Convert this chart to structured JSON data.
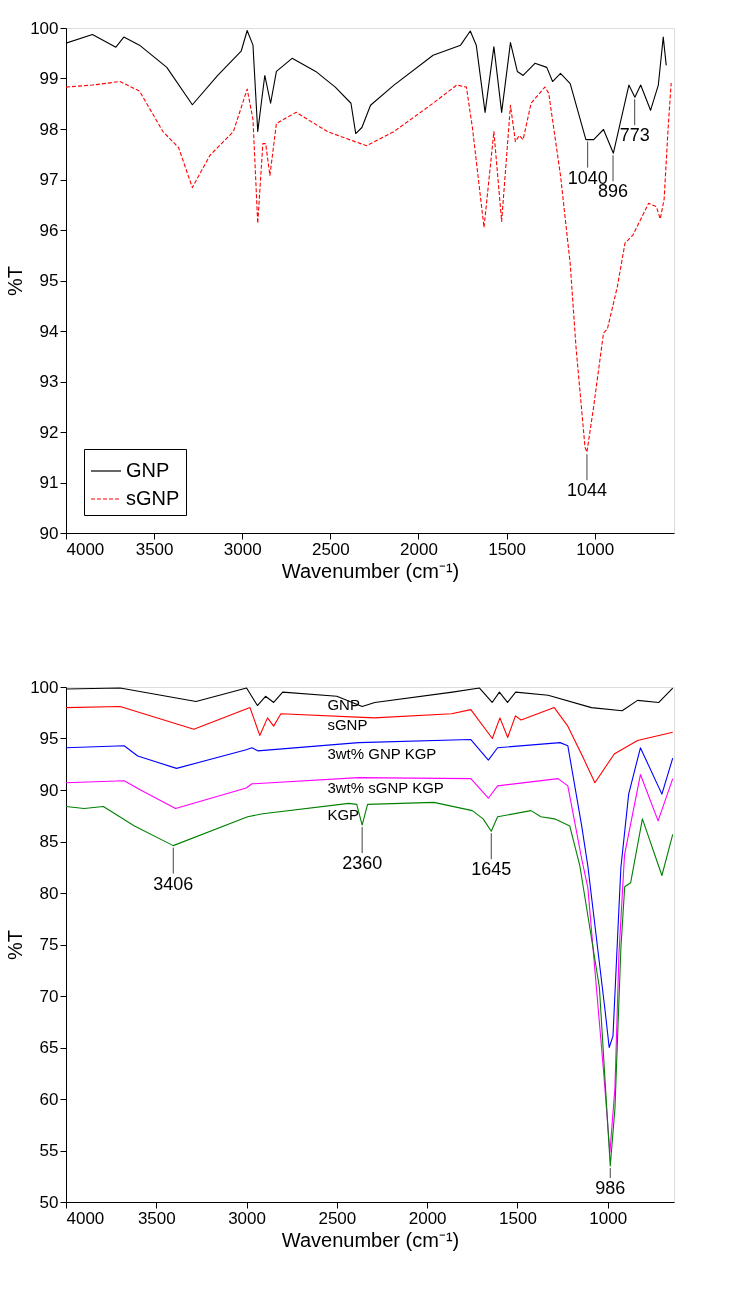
{
  "chart_data": [
    {
      "type": "line",
      "xlabel": "Wavenumber (cm⁻¹)",
      "ylabel": "%T",
      "xlim": [
        4000,
        550
      ],
      "xticks": [
        4000,
        3500,
        3000,
        2500,
        2000,
        1500,
        1000
      ],
      "ylim": [
        90,
        100
      ],
      "yticks": [
        90,
        91,
        92,
        93,
        94,
        95,
        96,
        97,
        98,
        99,
        100
      ],
      "legend": "bottom left",
      "grid": false,
      "series": [
        {
          "name": "GNP",
          "color": "#000000",
          "line_style": "solid",
          "x": [
            4000,
            3850,
            3717,
            3672,
            3583,
            3428,
            3283,
            3139,
            3006,
            2972,
            2939,
            2912,
            2872,
            2839,
            2806,
            2717,
            2583,
            2472,
            2383,
            2356,
            2321,
            2272,
            2139,
            1917,
            1761,
            1706,
            1672,
            1622,
            1572,
            1528,
            1478,
            1439,
            1406,
            1339,
            1272,
            1239,
            1194,
            1139,
            1050,
            1006,
            950,
            894,
            806,
            772,
            739,
            683,
            639,
            611,
            594
          ],
          "values": [
            99.7,
            99.87,
            99.62,
            99.82,
            99.66,
            99.22,
            98.48,
            99.06,
            99.54,
            99.95,
            99.66,
            97.95,
            99.06,
            98.51,
            99.14,
            99.4,
            99.14,
            98.83,
            98.51,
            97.91,
            98.03,
            98.47,
            98.87,
            99.46,
            99.66,
            99.94,
            99.66,
            98.33,
            99.63,
            98.33,
            99.71,
            99.14,
            99.06,
            99.3,
            99.22,
            98.94,
            99.1,
            98.9,
            97.79,
            97.79,
            97.99,
            97.52,
            98.87,
            98.63,
            98.87,
            98.37,
            98.87,
            99.82,
            99.26
          ]
        },
        {
          "name": "sGNP",
          "color": "#ff0000",
          "line_style": "dashed",
          "x": [
            4000,
            3850,
            3694,
            3583,
            3450,
            3361,
            3283,
            3183,
            3050,
            2972,
            2939,
            2912,
            2883,
            2867,
            2843,
            2806,
            2694,
            2517,
            2361,
            2294,
            2139,
            1917,
            1783,
            1728,
            1694,
            1628,
            1572,
            1528,
            1478,
            1450,
            1428,
            1406,
            1361,
            1283,
            1261,
            1194,
            1139,
            1106,
            1055,
            1044,
            1006,
            950,
            928,
            872,
            828,
            783,
            694,
            650,
            628,
            606,
            583,
            566
          ],
          "values": [
            98.83,
            98.87,
            98.94,
            98.75,
            97.95,
            97.63,
            96.84,
            97.48,
            97.95,
            98.79,
            98.19,
            96.13,
            97.71,
            97.71,
            97.08,
            98.11,
            98.33,
            97.95,
            97.75,
            97.67,
            97.95,
            98.51,
            98.87,
            98.83,
            98.03,
            96.05,
            97.95,
            96.17,
            98.47,
            97.75,
            97.87,
            97.79,
            98.51,
            98.83,
            98.71,
            97.08,
            95.33,
            93.68,
            91.7,
            91.6,
            92.5,
            93.96,
            94.04,
            94.87,
            95.74,
            95.9,
            96.53,
            96.46,
            96.22,
            96.61,
            98.04,
            98.91
          ]
        }
      ],
      "annotations": [
        {
          "text": "1040",
          "x": 1040,
          "y": 97.79
        },
        {
          "text": "896",
          "x": 896,
          "y": 97.52
        },
        {
          "text": "773",
          "x": 773,
          "y": 98.63
        },
        {
          "text": "1044",
          "x": 1044,
          "y": 91.6
        }
      ]
    },
    {
      "type": "line",
      "xlabel": "Wavenumber (cm⁻¹)",
      "ylabel": "%T",
      "xlim": [
        4000,
        633
      ],
      "xticks": [
        4000,
        3500,
        3000,
        2500,
        2000,
        1500,
        1000
      ],
      "ylim": [
        50,
        100
      ],
      "yticks": [
        50,
        55,
        60,
        65,
        70,
        75,
        80,
        85,
        90,
        95,
        100
      ],
      "legend": false,
      "grid": false,
      "series": [
        {
          "name": "GNP",
          "color": "#000000",
          "line_style": "solid",
          "x": [
            4000,
            3700,
            3280,
            3000,
            2940,
            2895,
            2850,
            2800,
            2500,
            2360,
            2290,
            1860,
            1710,
            1640,
            1600,
            1555,
            1510,
            1330,
            1090,
            920,
            835,
            717,
            640
          ],
          "values": [
            99.8,
            99.9,
            98.6,
            99.9,
            98.2,
            99.1,
            98.5,
            99.5,
            99.1,
            98.1,
            98.5,
            99.5,
            99.9,
            98.5,
            99.5,
            98.5,
            99.5,
            99.2,
            98.0,
            97.7,
            98.7,
            98.5,
            99.9
          ]
        },
        {
          "name": "sGNP",
          "color": "#ff0000",
          "line_style": "solid",
          "x": [
            4000,
            3700,
            3292,
            2981,
            2927,
            2884,
            2850,
            2810,
            2294,
            1865,
            1758,
            1639,
            1597,
            1554,
            1511,
            1480,
            1296,
            1221,
            1135,
            1071,
            964,
            835,
            640
          ],
          "values": [
            98.0,
            98.1,
            95.9,
            98.0,
            95.3,
            97.0,
            96.2,
            97.4,
            97.0,
            97.4,
            97.8,
            95.0,
            97.0,
            95.1,
            97.2,
            96.8,
            98.0,
            96.2,
            93.1,
            90.7,
            93.5,
            94.8,
            95.6
          ]
        },
        {
          "name": "3wt% GNP KGP",
          "color": "#0000ff",
          "line_style": "solid",
          "x": [
            4000,
            3678,
            3603,
            3388,
            3002,
            2970,
            2938,
            2380,
            1758,
            1661,
            1610,
            1264,
            1221,
            1144,
            1110,
            1014,
            992,
            971,
            938,
            927,
            884,
            819,
            700,
            640
          ],
          "values": [
            94.1,
            94.3,
            93.3,
            92.1,
            93.9,
            94.1,
            93.8,
            94.6,
            94.9,
            92.9,
            94.1,
            94.6,
            94.3,
            86.5,
            82.6,
            68.5,
            65.0,
            66.1,
            78.5,
            82.5,
            89.6,
            94.1,
            89.6,
            93.1
          ]
        },
        {
          "name": "3wt% sGNP KGP",
          "color": "#ff00ff",
          "line_style": "solid",
          "x": [
            4000,
            3678,
            3587,
            3393,
            3002,
            2970,
            2380,
            1758,
            1661,
            1610,
            1275,
            1221,
            1144,
            1110,
            1025,
            988,
            960,
            938,
            907,
            819,
            721,
            640
          ],
          "values": [
            90.7,
            90.9,
            90.0,
            88.2,
            90.2,
            90.6,
            91.2,
            91.1,
            89.2,
            90.4,
            91.1,
            90.4,
            83.3,
            80.5,
            63.1,
            54.8,
            61.1,
            74.0,
            83.7,
            91.5,
            87.0,
            91.1
          ]
        },
        {
          "name": "KGP",
          "color": "#008000",
          "line_style": "solid",
          "x": [
            4000,
            3900,
            3793,
            3621,
            3406,
            2994,
            2910,
            2434,
            2390,
            2360,
            2330,
            1963,
            1750,
            1690,
            1645,
            1610,
            1425,
            1370,
            1295,
            1210,
            1154,
            1046,
            986,
            960,
            927,
            906,
            873,
            808,
            700,
            640
          ],
          "values": [
            88.4,
            88.2,
            88.4,
            86.5,
            84.6,
            87.4,
            87.7,
            88.7,
            88.6,
            86.6,
            88.6,
            88.8,
            88.0,
            87.2,
            86.0,
            87.4,
            88.0,
            87.4,
            87.2,
            86.5,
            82.6,
            70.8,
            53.5,
            59.1,
            74.7,
            80.6,
            81.0,
            87.2,
            81.7,
            85.7
          ]
        }
      ],
      "annotations": [
        {
          "text": "3406",
          "x": 3406,
          "y": 84.6
        },
        {
          "text": "2360",
          "x": 2360,
          "y": 86.6
        },
        {
          "text": "1645",
          "x": 1645,
          "y": 86.0
        },
        {
          "text": "986",
          "x": 986,
          "y": 53.5
        }
      ]
    }
  ]
}
